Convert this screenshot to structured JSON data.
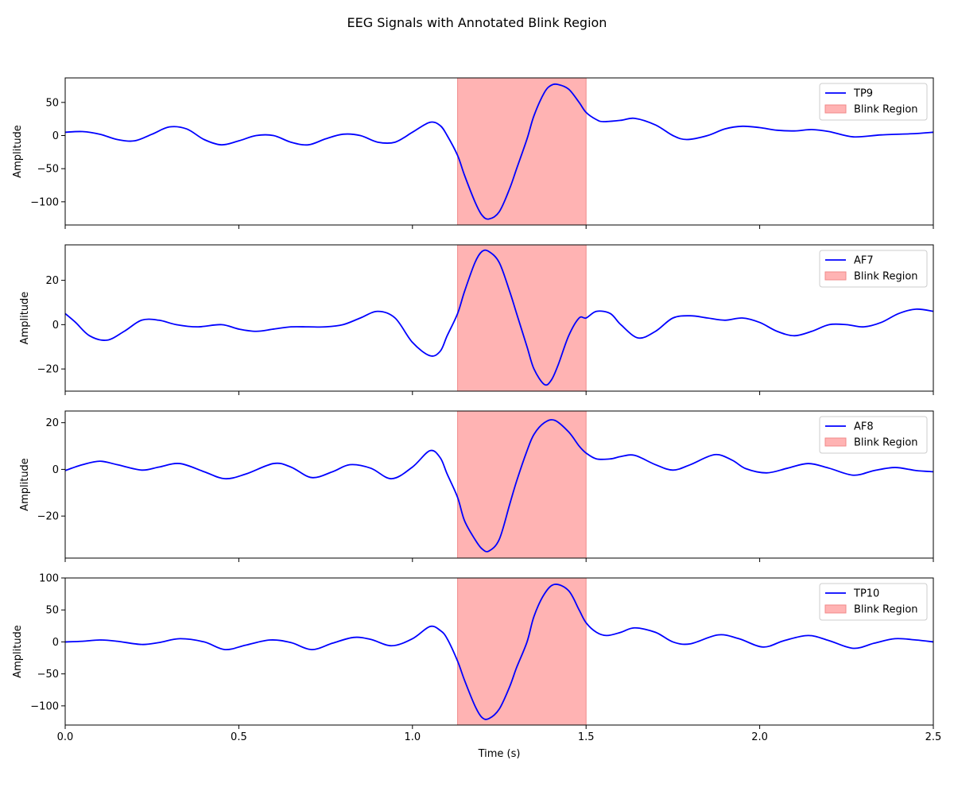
{
  "figure": {
    "title": "EEG Signals with Annotated Blink Region",
    "xlabel": "Time (s)"
  },
  "chart_data": [
    {
      "type": "line",
      "title": "",
      "xlabel": "",
      "ylabel": "Amplitude",
      "xlim": [
        0,
        2.5
      ],
      "ylim": [
        -135,
        87
      ],
      "yticks": [
        -100,
        -50,
        0,
        50
      ],
      "xticks": [
        0.0,
        0.5,
        1.0,
        1.5,
        2.0,
        2.5
      ],
      "xtick_labels_visible": false,
      "legend_position": "top-right",
      "shaded_region": {
        "label": "Blink Region",
        "x_start": 1.13,
        "x_end": 1.5,
        "color": "#ffb3b3"
      },
      "series": [
        {
          "name": "TP9",
          "color": "#0000ff",
          "x": [
            0.0,
            0.05,
            0.1,
            0.15,
            0.2,
            0.25,
            0.3,
            0.35,
            0.4,
            0.45,
            0.5,
            0.55,
            0.6,
            0.65,
            0.7,
            0.75,
            0.8,
            0.85,
            0.9,
            0.95,
            1.0,
            1.05,
            1.08,
            1.1,
            1.13,
            1.15,
            1.18,
            1.2,
            1.22,
            1.25,
            1.28,
            1.3,
            1.33,
            1.35,
            1.38,
            1.4,
            1.42,
            1.45,
            1.48,
            1.5,
            1.53,
            1.55,
            1.6,
            1.64,
            1.7,
            1.75,
            1.79,
            1.85,
            1.9,
            1.95,
            2.0,
            2.05,
            2.1,
            2.15,
            2.2,
            2.27,
            2.35,
            2.45,
            2.5
          ],
          "y": [
            5,
            6,
            2,
            -6,
            -8,
            2,
            13,
            10,
            -6,
            -14,
            -8,
            0,
            0,
            -10,
            -14,
            -5,
            2,
            0,
            -10,
            -10,
            5,
            20,
            15,
            0,
            -30,
            -60,
            -100,
            -120,
            -126,
            -115,
            -80,
            -50,
            -5,
            30,
            65,
            76,
            77,
            70,
            50,
            35,
            24,
            21,
            23,
            26,
            16,
            0,
            -6,
            0,
            10,
            14,
            12,
            8,
            7,
            9,
            6,
            -2,
            1,
            3,
            5
          ]
        }
      ]
    },
    {
      "type": "line",
      "title": "",
      "xlabel": "",
      "ylabel": "Amplitude",
      "xlim": [
        0,
        2.5
      ],
      "ylim": [
        -30,
        36
      ],
      "yticks": [
        -20,
        0,
        20
      ],
      "xticks": [
        0.0,
        0.5,
        1.0,
        1.5,
        2.0,
        2.5
      ],
      "xtick_labels_visible": false,
      "legend_position": "top-right",
      "shaded_region": {
        "label": "Blink Region",
        "x_start": 1.13,
        "x_end": 1.5,
        "color": "#ffb3b3"
      },
      "series": [
        {
          "name": "AF7",
          "color": "#0000ff",
          "x": [
            0.0,
            0.03,
            0.07,
            0.12,
            0.17,
            0.22,
            0.27,
            0.32,
            0.38,
            0.45,
            0.5,
            0.55,
            0.6,
            0.65,
            0.7,
            0.75,
            0.8,
            0.85,
            0.9,
            0.95,
            1.0,
            1.05,
            1.08,
            1.1,
            1.13,
            1.15,
            1.18,
            1.2,
            1.22,
            1.25,
            1.28,
            1.3,
            1.33,
            1.35,
            1.38,
            1.4,
            1.42,
            1.45,
            1.48,
            1.5,
            1.53,
            1.57,
            1.6,
            1.65,
            1.7,
            1.75,
            1.8,
            1.85,
            1.9,
            1.95,
            2.0,
            2.05,
            2.1,
            2.15,
            2.2,
            2.25,
            2.3,
            2.35,
            2.4,
            2.45,
            2.5
          ],
          "y": [
            5,
            1,
            -5,
            -7,
            -3,
            2,
            2,
            0,
            -1,
            0,
            -2,
            -3,
            -2,
            -1,
            -1,
            -1,
            0,
            3,
            6,
            3,
            -8,
            -14,
            -12,
            -5,
            5,
            15,
            28,
            33,
            33,
            28,
            15,
            5,
            -10,
            -20,
            -27,
            -25,
            -18,
            -5,
            3,
            3,
            6,
            5,
            0,
            -6,
            -3,
            3,
            4,
            3,
            2,
            3,
            1,
            -3,
            -5,
            -3,
            0,
            0,
            -1,
            1,
            5,
            7,
            6
          ]
        }
      ]
    },
    {
      "type": "line",
      "title": "",
      "xlabel": "",
      "ylabel": "Amplitude",
      "xlim": [
        0,
        2.5
      ],
      "ylim": [
        -38,
        25
      ],
      "yticks": [
        -20,
        0,
        20
      ],
      "xticks": [
        0.0,
        0.5,
        1.0,
        1.5,
        2.0,
        2.5
      ],
      "xtick_labels_visible": false,
      "legend_position": "top-right",
      "shaded_region": {
        "label": "Blink Region",
        "x_start": 1.13,
        "x_end": 1.5,
        "color": "#ffb3b3"
      },
      "series": [
        {
          "name": "AF8",
          "color": "#0000ff",
          "x": [
            0.0,
            0.05,
            0.1,
            0.15,
            0.22,
            0.27,
            0.33,
            0.4,
            0.46,
            0.52,
            0.6,
            0.65,
            0.71,
            0.77,
            0.82,
            0.88,
            0.94,
            1.0,
            1.05,
            1.08,
            1.1,
            1.13,
            1.15,
            1.18,
            1.2,
            1.22,
            1.25,
            1.28,
            1.3,
            1.33,
            1.35,
            1.38,
            1.41,
            1.45,
            1.48,
            1.5,
            1.53,
            1.57,
            1.6,
            1.64,
            1.7,
            1.75,
            1.8,
            1.87,
            1.92,
            1.96,
            2.02,
            2.08,
            2.14,
            2.2,
            2.27,
            2.33,
            2.39,
            2.45,
            2.5
          ],
          "y": [
            -0.5,
            2,
            3.5,
            2,
            -0.3,
            1,
            2.5,
            -1,
            -4,
            -2,
            2.5,
            1,
            -3.5,
            -1,
            2,
            0.5,
            -4,
            1,
            8,
            5,
            -2,
            -12,
            -22,
            -30,
            -34,
            -35,
            -30,
            -15,
            -5,
            8,
            15,
            20,
            21,
            16,
            10,
            7,
            4.5,
            4.5,
            5.5,
            6,
            2,
            -0.3,
            2,
            6.3,
            4,
            0.3,
            -1.5,
            0.5,
            2.5,
            0.5,
            -2.5,
            -0.5,
            0.8,
            -0.5,
            -1
          ]
        }
      ]
    },
    {
      "type": "line",
      "title": "",
      "xlabel": "Time (s)",
      "ylabel": "Amplitude",
      "xlim": [
        0,
        2.5
      ],
      "ylim": [
        -130,
        100
      ],
      "yticks": [
        -100,
        -50,
        0,
        50,
        100
      ],
      "xticks": [
        0.0,
        0.5,
        1.0,
        1.5,
        2.0,
        2.5
      ],
      "xtick_labels_visible": true,
      "legend_position": "top-right",
      "shaded_region": {
        "label": "Blink Region",
        "x_start": 1.13,
        "x_end": 1.5,
        "color": "#ffb3b3"
      },
      "series": [
        {
          "name": "TP10",
          "color": "#0000ff",
          "x": [
            0.0,
            0.05,
            0.1,
            0.15,
            0.22,
            0.27,
            0.33,
            0.4,
            0.46,
            0.52,
            0.59,
            0.65,
            0.71,
            0.77,
            0.83,
            0.88,
            0.94,
            1.0,
            1.05,
            1.08,
            1.1,
            1.13,
            1.15,
            1.18,
            1.2,
            1.22,
            1.25,
            1.28,
            1.3,
            1.33,
            1.35,
            1.38,
            1.41,
            1.45,
            1.48,
            1.5,
            1.53,
            1.56,
            1.6,
            1.64,
            1.7,
            1.75,
            1.8,
            1.88,
            1.94,
            2.01,
            2.07,
            2.14,
            2.2,
            2.27,
            2.33,
            2.39,
            2.45,
            2.5
          ],
          "y": [
            0,
            1,
            3,
            1,
            -4,
            -1,
            5,
            0,
            -12,
            -5,
            3,
            -1,
            -12,
            -2,
            7,
            4,
            -6,
            5,
            24,
            18,
            5,
            -30,
            -60,
            -100,
            -118,
            -120,
            -105,
            -70,
            -40,
            0,
            40,
            75,
            90,
            80,
            50,
            30,
            15,
            10,
            15,
            22,
            15,
            0,
            -3,
            11,
            5,
            -8,
            2,
            10,
            2,
            -10,
            -2,
            5,
            3,
            0
          ]
        }
      ]
    }
  ]
}
